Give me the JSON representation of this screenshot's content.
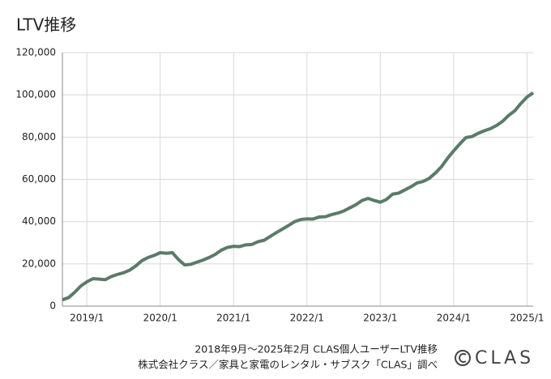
{
  "chart_data": {
    "type": "line",
    "title": "LTV推移",
    "caption": [
      "2018年9月～2025年2月  CLAS個人ユーザーLTV推移",
      "株式会社クラス／家具と家電のレンタル・サブスク「CLAS」調べ"
    ],
    "logo": "CLAS",
    "categories": [
      null,
      null,
      null,
      null,
      "2019/1",
      null,
      null,
      null,
      null,
      null,
      null,
      null,
      null,
      null,
      null,
      null,
      "2020/1",
      null,
      null,
      null,
      null,
      null,
      null,
      null,
      null,
      null,
      null,
      null,
      "2021/1",
      null,
      null,
      null,
      null,
      null,
      null,
      null,
      null,
      null,
      null,
      null,
      "2022/1",
      null,
      null,
      null,
      null,
      null,
      null,
      null,
      null,
      null,
      null,
      null,
      "2023/1",
      null,
      null,
      null,
      null,
      null,
      null,
      null,
      null,
      null,
      null,
      null,
      "2024/1",
      null,
      null,
      null,
      null,
      null,
      null,
      null,
      null,
      null,
      null,
      null,
      "2025/1",
      null
    ],
    "series": [
      {
        "name": "LTV",
        "color": "#5b7b69",
        "values": [
          3000,
          4000,
          6500,
          9500,
          11500,
          13000,
          12800,
          12500,
          14000,
          15000,
          15800,
          17000,
          19000,
          21500,
          23000,
          24000,
          25300,
          25000,
          25300,
          22000,
          19500,
          19800,
          20800,
          21800,
          23000,
          24500,
          26500,
          27800,
          28300,
          28200,
          29000,
          29200,
          30500,
          31200,
          33000,
          34800,
          36500,
          38200,
          40000,
          41000,
          41300,
          41200,
          42200,
          42300,
          43300,
          44000,
          45000,
          46500,
          48000,
          50000,
          51000,
          50000,
          49200,
          50500,
          53000,
          53500,
          55000,
          56500,
          58300,
          59000,
          60500,
          63000,
          66000,
          70000,
          73500,
          76800,
          79800,
          80300,
          81800,
          83000,
          84000,
          85500,
          87500,
          90300,
          92500,
          96000,
          99000,
          101000
        ]
      }
    ],
    "ylim": [
      0,
      120000
    ],
    "yticks": [
      0,
      {
        "value": 20000,
        "label": "20,000"
      },
      {
        "value": 40000,
        "label": "40,000"
      },
      {
        "value": 60000,
        "label": "60,000"
      },
      {
        "value": 80000,
        "label": "80,000"
      },
      {
        "value": 100000,
        "label": "100,000"
      },
      {
        "value": 120000,
        "label": "120,000"
      }
    ],
    "grid": true
  }
}
